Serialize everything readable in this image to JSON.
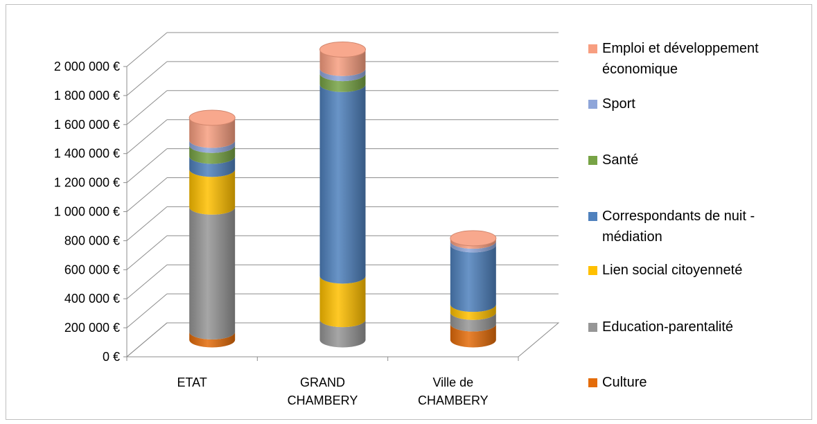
{
  "chart_data": {
    "type": "bar",
    "stacked": true,
    "style": "3d-cylinder",
    "categories": [
      "ETAT",
      "GRAND CHAMBERY",
      "Ville de CHAMBERY"
    ],
    "category_lines": [
      [
        "ETAT"
      ],
      [
        "GRAND",
        "CHAMBERY"
      ],
      [
        "Ville de",
        "CHAMBERY"
      ]
    ],
    "ylim": [
      0,
      2000000
    ],
    "ytick_values": [
      0,
      200000,
      400000,
      600000,
      800000,
      1000000,
      1200000,
      1400000,
      1600000,
      1800000,
      2000000
    ],
    "ytick_labels": [
      "0 €",
      "200 000 €",
      "400 000 €",
      "600 000 €",
      "800 000 €",
      "1 000 000 €",
      "1 200 000 €",
      "1 400 000 €",
      "1 600 000 €",
      "1 800 000 €",
      "2 000 000 €"
    ],
    "grid": true,
    "legend_position": "right",
    "series": [
      {
        "name": "Culture",
        "color": "#E46C0A",
        "values": [
          55000,
          0,
          110000
        ]
      },
      {
        "name": "Education-parentalité",
        "color": "#969696",
        "values": [
          860000,
          140000,
          80000
        ]
      },
      {
        "name": "Lien social citoyenneté",
        "color": "#FFC000",
        "values": [
          260000,
          300000,
          55000
        ]
      },
      {
        "name": "Correspondants de nuit - médiation",
        "color": "#4F81BD",
        "values": [
          90000,
          1320000,
          410000
        ]
      },
      {
        "name": "Santé",
        "color": "#77A345",
        "values": [
          75000,
          75000,
          0
        ]
      },
      {
        "name": "Sport",
        "color": "#8EA5D9",
        "values": [
          35000,
          35000,
          25000
        ]
      },
      {
        "name": "Emploi et développement économique",
        "color": "#F79E80",
        "values": [
          155000,
          130000,
          20000
        ]
      }
    ],
    "legend_lines": [
      [
        "Emploi et développement",
        "économique"
      ],
      [
        "Sport"
      ],
      [
        "Santé"
      ],
      [
        "Correspondants de nuit -",
        "médiation"
      ],
      [
        "Lien social citoyenneté"
      ],
      [
        "Education-parentalité"
      ],
      [
        "Culture"
      ]
    ],
    "title": "",
    "xlabel": "",
    "ylabel": ""
  }
}
